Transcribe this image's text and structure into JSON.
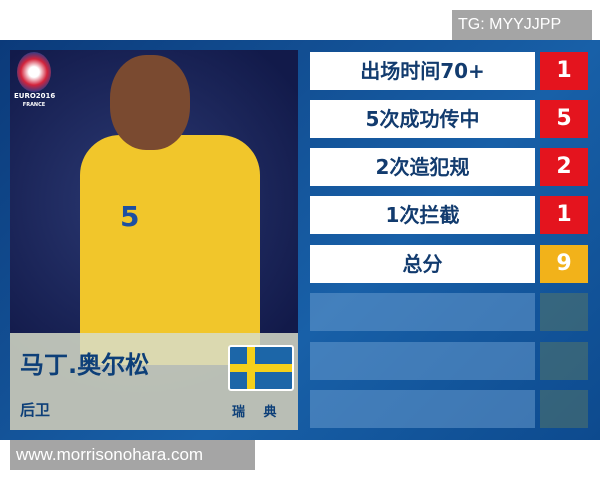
{
  "watermark_top": "TG: MYYJJPP",
  "watermark_bottom": "www.morrisonohara.com",
  "logo": {
    "text": "EURO2016",
    "sub": "FRANCE"
  },
  "player": {
    "name": "马丁.奥尔松",
    "position": "后卫",
    "country": "瑞 典",
    "shirt_number": "5"
  },
  "stats": [
    {
      "label": "出场时间70+",
      "value": "1"
    },
    {
      "label": "5次成功传中",
      "value": "5"
    },
    {
      "label": "2次造犯规",
      "value": "2"
    },
    {
      "label": "1次拦截",
      "value": "1"
    },
    {
      "label": "总分",
      "value": "9"
    }
  ],
  "colors": {
    "value_box": "#e4141e",
    "total_box": "#f2b21a",
    "text": "#123b6e"
  }
}
